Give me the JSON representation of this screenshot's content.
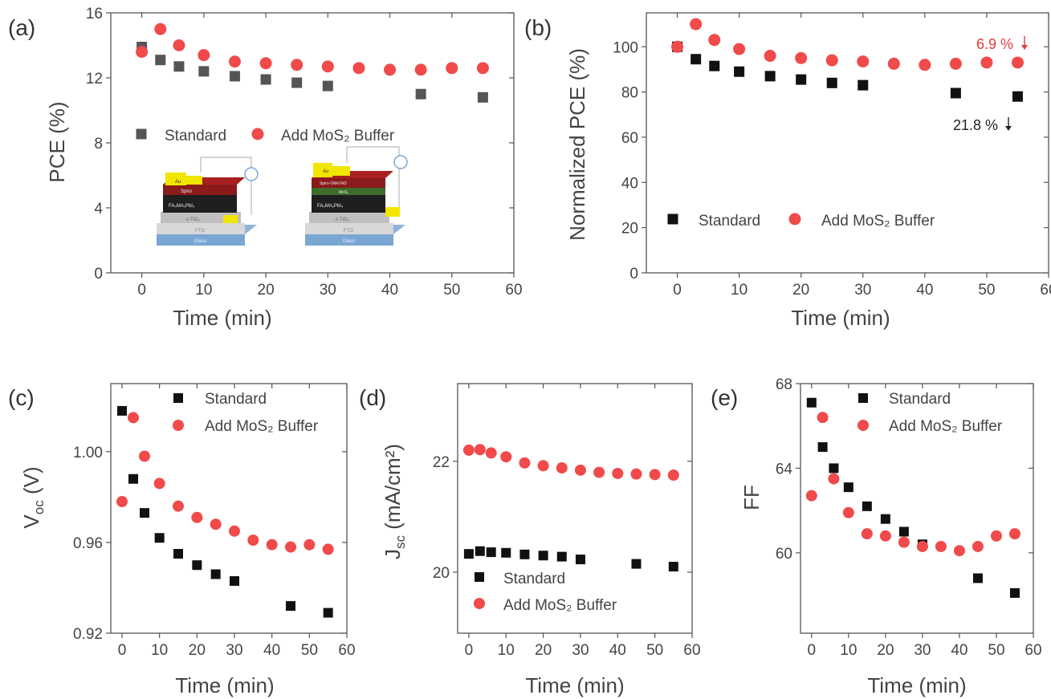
{
  "colors": {
    "standard_a": "#555555",
    "standard": "#111111",
    "mos2": "#f04a4a",
    "mos2_anno": "#e03b3b"
  },
  "chart_data": [
    {
      "id": "a",
      "panel_label": "(a)",
      "type": "scatter",
      "xlabel": "Time (min)",
      "ylabel": "PCE (%)",
      "xlim": [
        -5,
        60
      ],
      "ylim": [
        0,
        16
      ],
      "xticks": [
        0,
        10,
        20,
        30,
        40,
        50,
        60
      ],
      "yticks": [
        0,
        4,
        8,
        12,
        16
      ],
      "grid": false,
      "legend_position": "middle",
      "series": [
        {
          "name": "Standard",
          "marker": "square",
          "x": [
            0,
            3,
            6,
            10,
            15,
            20,
            25,
            30,
            45,
            55
          ],
          "y": [
            13.9,
            13.1,
            12.7,
            12.4,
            12.1,
            11.9,
            11.7,
            11.5,
            11.0,
            10.8
          ]
        },
        {
          "name": "Add MoS₂ Buffer",
          "marker": "circle",
          "x": [
            0,
            3,
            6,
            10,
            15,
            20,
            25,
            30,
            35,
            40,
            45,
            50,
            55
          ],
          "y": [
            13.6,
            15.0,
            14.0,
            13.4,
            13.0,
            12.9,
            12.8,
            12.7,
            12.6,
            12.5,
            12.5,
            12.6,
            12.6
          ]
        }
      ],
      "inset": {
        "left_device": [
          "Au",
          "Spiro",
          "FA₀MA₁PbI₃",
          "c-TiO₂",
          "FTO",
          "Glass"
        ],
        "right_device": [
          "Au",
          "Spiro-OMeTAD",
          "MoS₂",
          "FA₀MA₁PbI₃",
          "c-TiO₂",
          "FTO",
          "Glass"
        ]
      }
    },
    {
      "id": "b",
      "panel_label": "(b)",
      "type": "scatter",
      "xlabel": "Time (min)",
      "ylabel": "Normalized PCE (%)",
      "xlim": [
        -5,
        60
      ],
      "ylim": [
        0,
        115
      ],
      "xticks": [
        0,
        10,
        20,
        30,
        40,
        50,
        60
      ],
      "yticks": [
        0,
        20,
        40,
        60,
        80,
        100
      ],
      "grid": false,
      "legend_position": "bottom",
      "series": [
        {
          "name": "Standard",
          "marker": "square",
          "x": [
            0,
            3,
            6,
            10,
            15,
            20,
            25,
            30,
            45,
            55
          ],
          "y": [
            100,
            94.5,
            91.5,
            89,
            87,
            85.5,
            84,
            83,
            79.5,
            78
          ]
        },
        {
          "name": "Add MoS₂ Buffer",
          "marker": "circle",
          "x": [
            0,
            3,
            6,
            10,
            15,
            20,
            25,
            30,
            35,
            40,
            45,
            50,
            55
          ],
          "y": [
            100,
            110,
            103,
            99,
            96,
            95,
            94,
            93.5,
            92.5,
            92,
            92.5,
            93,
            93
          ]
        }
      ],
      "annotations": [
        {
          "text": "6.9 %",
          "series": "Add MoS₂ Buffer"
        },
        {
          "text": "21.8 %",
          "series": "Standard"
        }
      ]
    },
    {
      "id": "c",
      "panel_label": "(c)",
      "type": "scatter",
      "xlabel": "Time (min)",
      "ylabel": "V",
      "ylabel_sub": "oc",
      "ylabel_suffix": " (V)",
      "xlim": [
        -3,
        60
      ],
      "ylim": [
        0.92,
        1.03
      ],
      "xticks": [
        0,
        10,
        20,
        30,
        40,
        50,
        60
      ],
      "yticks": [
        0.92,
        0.96,
        1.0
      ],
      "ytick_labels": [
        "0.92",
        "0.96",
        "1.00"
      ],
      "grid": false,
      "legend_position": "top",
      "series": [
        {
          "name": "Standard",
          "marker": "square",
          "x": [
            0,
            3,
            6,
            10,
            15,
            20,
            25,
            30,
            45,
            55
          ],
          "y": [
            1.018,
            0.988,
            0.973,
            0.962,
            0.955,
            0.95,
            0.946,
            0.943,
            0.932,
            0.929
          ]
        },
        {
          "name": "Add MoS₂ Buffer",
          "marker": "circle",
          "x": [
            0,
            3,
            6,
            10,
            15,
            20,
            25,
            30,
            35,
            40,
            45,
            50,
            55
          ],
          "y": [
            0.978,
            1.015,
            0.998,
            0.986,
            0.976,
            0.971,
            0.968,
            0.965,
            0.961,
            0.959,
            0.958,
            0.959,
            0.957
          ]
        }
      ]
    },
    {
      "id": "d",
      "panel_label": "(d)",
      "type": "scatter",
      "xlabel": "Time (min)",
      "ylabel": "J",
      "ylabel_sub": "sc",
      "ylabel_suffix": " (mA/cm²)",
      "xlim": [
        -3,
        60
      ],
      "ylim": [
        18.9,
        23.4
      ],
      "xticks": [
        0,
        10,
        20,
        30,
        40,
        50,
        60
      ],
      "yticks": [
        20,
        22
      ],
      "grid": false,
      "legend_position": "bottom",
      "series": [
        {
          "name": "Standard",
          "marker": "square",
          "x": [
            0,
            3,
            6,
            10,
            15,
            20,
            25,
            30,
            45,
            55
          ],
          "y": [
            20.33,
            20.38,
            20.36,
            20.35,
            20.32,
            20.3,
            20.28,
            20.23,
            20.15,
            20.1
          ]
        },
        {
          "name": "Add MoS₂ Buffer",
          "marker": "circle",
          "x": [
            0,
            3,
            6,
            10,
            15,
            20,
            25,
            30,
            35,
            40,
            45,
            50,
            55
          ],
          "y": [
            22.2,
            22.21,
            22.15,
            22.08,
            21.97,
            21.92,
            21.88,
            21.84,
            21.8,
            21.78,
            21.77,
            21.76,
            21.75
          ]
        }
      ]
    },
    {
      "id": "e",
      "panel_label": "(e)",
      "type": "scatter",
      "xlabel": "Time (min)",
      "ylabel": "FF",
      "xlim": [
        -3,
        60
      ],
      "ylim": [
        56.2,
        68
      ],
      "xticks": [
        0,
        10,
        20,
        30,
        40,
        50,
        60
      ],
      "yticks": [
        60,
        64,
        68
      ],
      "grid": false,
      "legend_position": "top",
      "series": [
        {
          "name": "Standard",
          "marker": "square",
          "x": [
            0,
            3,
            6,
            10,
            15,
            20,
            25,
            30,
            45,
            55
          ],
          "y": [
            67.1,
            65.0,
            64.0,
            63.1,
            62.2,
            61.6,
            61.0,
            60.4,
            58.8,
            58.1
          ]
        },
        {
          "name": "Add MoS₂ Buffer",
          "marker": "circle",
          "x": [
            0,
            3,
            6,
            10,
            15,
            20,
            25,
            30,
            35,
            40,
            45,
            50,
            55
          ],
          "y": [
            62.7,
            66.4,
            63.5,
            61.9,
            60.9,
            60.8,
            60.5,
            60.3,
            60.3,
            60.1,
            60.3,
            60.8,
            60.9
          ]
        }
      ]
    }
  ]
}
